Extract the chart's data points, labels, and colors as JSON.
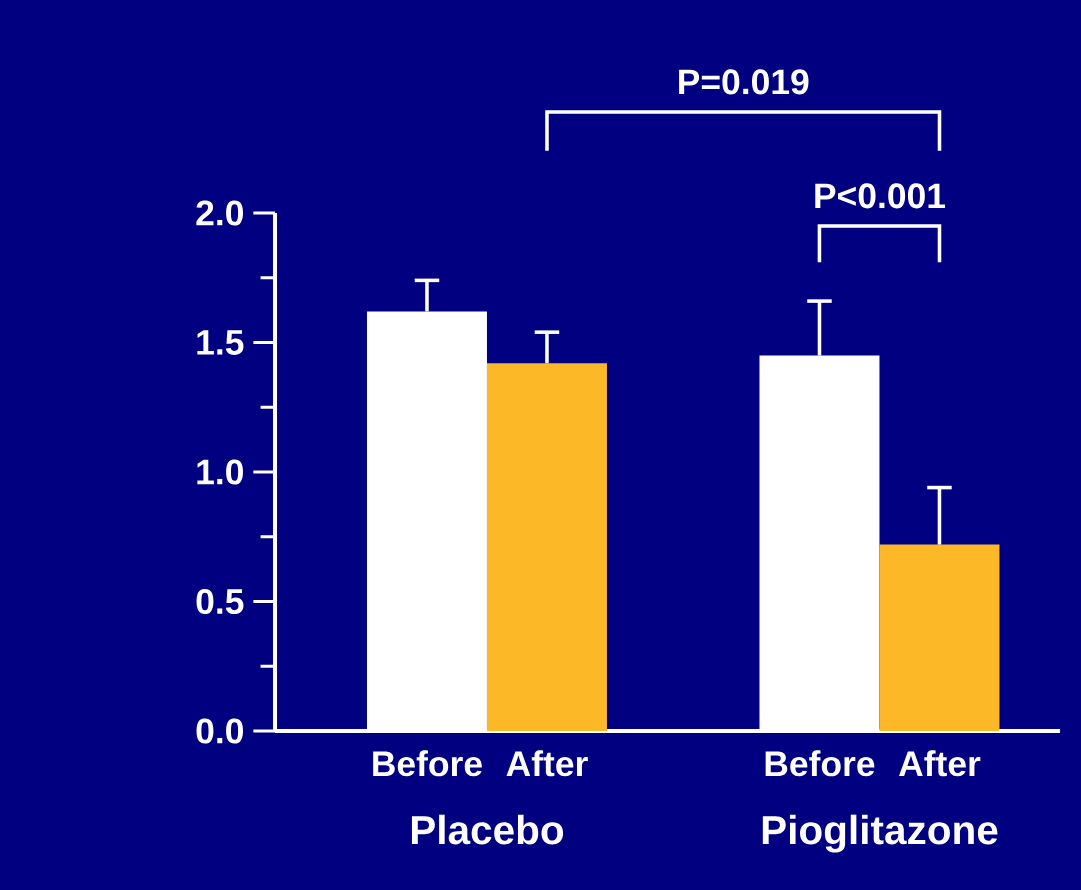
{
  "chart_data": {
    "type": "bar",
    "categories": [
      "Placebo",
      "Pioglitazone"
    ],
    "series": [
      {
        "name": "Before",
        "color": "#ffffff",
        "values": [
          1.62,
          1.45
        ],
        "errors": [
          0.12,
          0.21
        ]
      },
      {
        "name": "After",
        "color": "#fdb827",
        "values": [
          1.42,
          0.72
        ],
        "errors": [
          0.12,
          0.22
        ]
      }
    ],
    "ylim": [
      0,
      2.0
    ],
    "yticks": [
      {
        "value": 0,
        "label": "0.0"
      },
      0.5,
      {
        "value": 1.0,
        "label": "1.0"
      },
      1.5,
      {
        "value": 2.0,
        "label": "2.0"
      }
    ],
    "annotations": [
      "P=0.019",
      "P<0.001"
    ],
    "grid": false,
    "legend": false
  }
}
